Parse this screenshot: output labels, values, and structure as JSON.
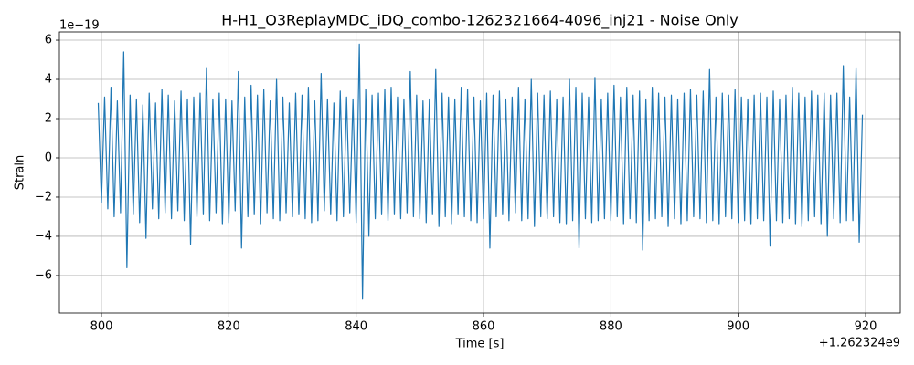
{
  "chart_data": {
    "type": "line",
    "title": "H-H1_O3ReplayMDC_iDQ_combo-1262321664-4096_inj21 - Noise Only",
    "xlabel": "Time [s]",
    "ylabel": "Strain",
    "x_offset_label": "+1.262324e9",
    "y_offset_label": "1e−19",
    "color": "#1f77b4",
    "grid": true,
    "xlim": [
      793.4,
      925.45
    ],
    "ylim": [
      -7.91,
      6.42
    ],
    "xticks": [
      800,
      820,
      840,
      860,
      880,
      900,
      920
    ],
    "yticks": [
      {
        "value": -6,
        "label": "−6"
      },
      {
        "value": -4,
        "label": "−4"
      },
      {
        "value": -2,
        "label": "−2"
      },
      0,
      2,
      4,
      6
    ],
    "x": [
      799.5,
      800,
      800.5,
      801,
      801.5,
      802,
      802.5,
      803,
      803.5,
      804,
      804.5,
      805,
      805.5,
      806,
      806.5,
      807,
      807.5,
      808,
      808.5,
      809,
      809.5,
      810,
      810.5,
      811,
      811.5,
      812,
      812.5,
      813,
      813.5,
      814,
      814.5,
      815,
      815.5,
      816,
      816.5,
      817,
      817.5,
      818,
      818.5,
      819,
      819.5,
      820,
      820.5,
      821,
      821.5,
      822,
      822.5,
      823,
      823.5,
      824,
      824.5,
      825,
      825.5,
      826,
      826.5,
      827,
      827.5,
      828,
      828.5,
      829,
      829.5,
      830,
      830.5,
      831,
      831.5,
      832,
      832.5,
      833,
      833.5,
      834,
      834.5,
      835,
      835.5,
      836,
      836.5,
      837,
      837.5,
      838,
      838.5,
      839,
      839.5,
      840,
      840.5,
      841,
      841.5,
      842,
      842.5,
      843,
      843.5,
      844,
      844.5,
      845,
      845.5,
      846,
      846.5,
      847,
      847.5,
      848,
      848.5,
      849,
      849.5,
      850,
      850.5,
      851,
      851.5,
      852,
      852.5,
      853,
      853.5,
      854,
      854.5,
      855,
      855.5,
      856,
      856.5,
      857,
      857.5,
      858,
      858.5,
      859,
      859.5,
      860,
      860.5,
      861,
      861.5,
      862,
      862.5,
      863,
      863.5,
      864,
      864.5,
      865,
      865.5,
      866,
      866.5,
      867,
      867.5,
      868,
      868.5,
      869,
      869.5,
      870,
      870.5,
      871,
      871.5,
      872,
      872.5,
      873,
      873.5,
      874,
      874.5,
      875,
      875.5,
      876,
      876.5,
      877,
      877.5,
      878,
      878.5,
      879,
      879.5,
      880,
      880.5,
      881,
      881.5,
      882,
      882.5,
      883,
      883.5,
      884,
      884.5,
      885,
      885.5,
      886,
      886.5,
      887,
      887.5,
      888,
      888.5,
      889,
      889.5,
      890,
      890.5,
      891,
      891.5,
      892,
      892.5,
      893,
      893.5,
      894,
      894.5,
      895,
      895.5,
      896,
      896.5,
      897,
      897.5,
      898,
      898.5,
      899,
      899.5,
      900,
      900.5,
      901,
      901.5,
      902,
      902.5,
      903,
      903.5,
      904,
      904.5,
      905,
      905.5,
      906,
      906.5,
      907,
      907.5,
      908,
      908.5,
      909,
      909.5,
      910,
      910.5,
      911,
      911.5,
      912,
      912.5,
      913,
      913.5,
      914,
      914.5,
      915,
      915.5,
      916,
      916.5,
      917,
      917.5,
      918,
      918.5,
      919,
      919.5
    ],
    "values": [
      2.8,
      -2.3,
      3.1,
      -2.6,
      3.6,
      -3.0,
      2.9,
      -2.8,
      5.4,
      -5.6,
      3.2,
      -2.9,
      3.0,
      -3.3,
      2.7,
      -4.1,
      3.3,
      -2.6,
      2.8,
      -3.1,
      3.5,
      -2.8,
      3.2,
      -3.1,
      2.9,
      -2.7,
      3.4,
      -3.2,
      3.0,
      -4.4,
      3.1,
      -3.0,
      3.3,
      -2.9,
      4.6,
      -3.2,
      3.0,
      -2.8,
      3.3,
      -3.4,
      3.0,
      -3.3,
      2.9,
      -2.7,
      4.4,
      -4.6,
      3.1,
      -3.0,
      3.7,
      -2.9,
      3.2,
      -3.4,
      3.5,
      -2.8,
      2.9,
      -3.1,
      4.0,
      -3.2,
      3.1,
      -2.8,
      2.8,
      -3.0,
      3.3,
      -2.9,
      3.2,
      -3.1,
      3.6,
      -3.3,
      2.9,
      -3.2,
      4.3,
      -2.7,
      3.0,
      -2.9,
      2.8,
      -3.2,
      3.4,
      -3.0,
      3.1,
      -2.8,
      3.0,
      -3.3,
      5.8,
      -7.2,
      3.5,
      -4.0,
      3.2,
      -3.1,
      3.3,
      -2.9,
      3.5,
      -3.2,
      3.6,
      -2.9,
      3.1,
      -3.1,
      3.0,
      -2.8,
      4.4,
      -3.0,
      3.2,
      -3.1,
      2.9,
      -3.3,
      3.0,
      -2.9,
      4.5,
      -3.5,
      3.3,
      -3.0,
      3.1,
      -3.4,
      3.0,
      -2.9,
      3.6,
      -3.0,
      3.5,
      -3.2,
      3.1,
      -3.3,
      2.9,
      -3.1,
      3.3,
      -4.6,
      3.2,
      -3.0,
      3.4,
      -2.9,
      3.0,
      -3.2,
      3.1,
      -2.8,
      3.6,
      -3.2,
      3.0,
      -3.1,
      4.0,
      -3.5,
      3.3,
      -3.0,
      3.2,
      -3.1,
      3.4,
      -3.0,
      3.0,
      -3.3,
      3.1,
      -3.4,
      4.0,
      -3.2,
      3.6,
      -4.6,
      3.3,
      -3.1,
      3.1,
      -3.3,
      4.1,
      -3.2,
      3.0,
      -3.1,
      3.3,
      -3.2,
      3.7,
      -3.0,
      3.1,
      -3.4,
      3.6,
      -3.1,
      3.2,
      -3.3,
      3.4,
      -4.7,
      3.0,
      -3.2,
      3.6,
      -3.1,
      3.3,
      -3.0,
      3.1,
      -3.5,
      3.2,
      -3.1,
      3.0,
      -3.4,
      3.3,
      -3.2,
      3.5,
      -3.0,
      3.2,
      -3.1,
      3.4,
      -3.3,
      4.5,
      -3.2,
      3.1,
      -3.4,
      3.3,
      -3.0,
      3.2,
      -3.1,
      3.5,
      -3.3,
      3.1,
      -3.2,
      3.0,
      -3.4,
      3.2,
      -3.1,
      3.3,
      -3.2,
      3.1,
      -4.5,
      3.4,
      -3.2,
      3.0,
      -3.3,
      3.2,
      -3.1,
      3.6,
      -3.4,
      3.3,
      -3.5,
      3.1,
      -3.2,
      3.4,
      -3.0,
      3.2,
      -3.4,
      3.3,
      -4.0,
      3.2,
      -3.1,
      3.3,
      -3.3,
      4.7,
      -3.2,
      3.1,
      -3.2,
      4.6,
      -4.3,
      2.2
    ]
  }
}
